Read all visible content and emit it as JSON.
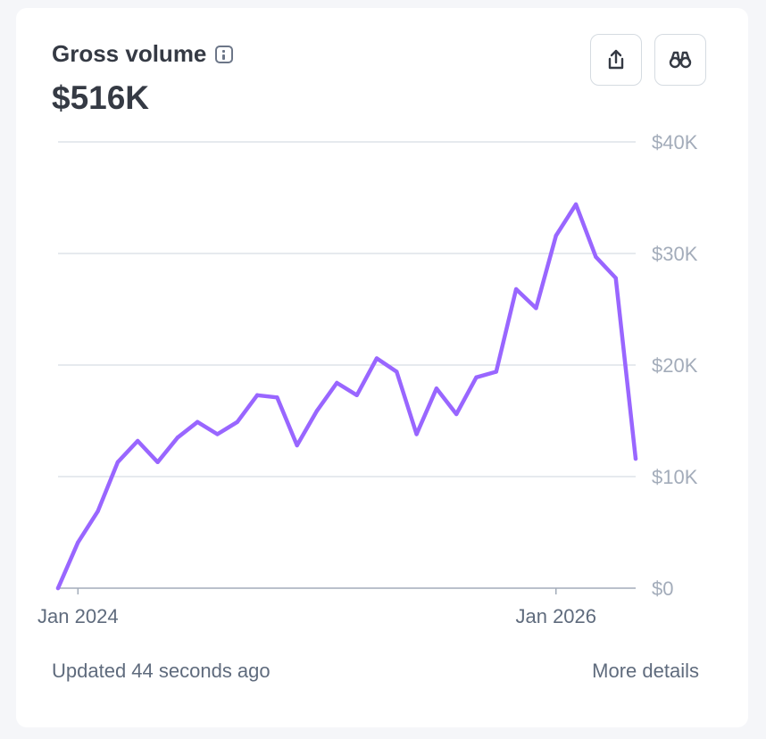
{
  "card": {
    "title": "Gross volume",
    "value": "$516K",
    "updated": "Updated 44 seconds ago",
    "more_details": "More details"
  },
  "icons": {
    "info": "info-icon",
    "export": "share-export-icon",
    "explore": "binoculars-icon"
  },
  "colors": {
    "line": "#9966ff",
    "grid": "#d6dde4",
    "axis": "#a3acba"
  },
  "chart_data": {
    "type": "line",
    "x": [
      "2023-12",
      "2024-01",
      "2024-02",
      "2024-03",
      "2024-04",
      "2024-05",
      "2024-06",
      "2024-07",
      "2024-08",
      "2024-09",
      "2024-10",
      "2024-11",
      "2024-12",
      "2025-01",
      "2025-02",
      "2025-03",
      "2025-04",
      "2025-05",
      "2025-06",
      "2025-07",
      "2025-08",
      "2025-09",
      "2025-10",
      "2025-11",
      "2025-12",
      "2026-01",
      "2026-02",
      "2026-03",
      "2026-04",
      "2026-05"
    ],
    "series": [
      {
        "values": [
          0,
          4100,
          6900,
          11300,
          13200,
          11300,
          13500,
          14900,
          13800,
          14900,
          17300,
          17100,
          12800,
          15900,
          18400,
          17300,
          20600,
          19400,
          13800,
          17900,
          15600,
          18900,
          19400,
          26800,
          25100,
          31600,
          34400,
          29700,
          27800,
          11600
        ]
      }
    ],
    "xticks": [
      {
        "x": "2024-01",
        "label": "Jan 2024"
      },
      {
        "x": "2026-01",
        "label": "Jan 2026"
      }
    ],
    "yticks": [
      {
        "value": 0,
        "label": "$0"
      },
      {
        "value": 10000,
        "label": "$10K"
      },
      {
        "value": 20000,
        "label": "$20K"
      },
      {
        "value": 30000,
        "label": "$30K"
      },
      {
        "value": 40000,
        "label": "$40K"
      }
    ],
    "ylim": [
      0,
      40000
    ],
    "grid": true,
    "legend": "none"
  }
}
